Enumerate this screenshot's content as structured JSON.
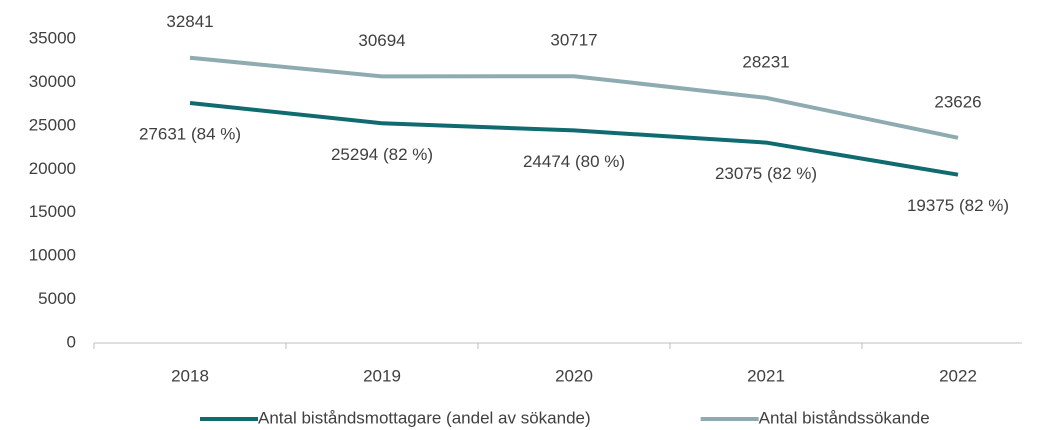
{
  "chart_data": {
    "type": "line",
    "categories": [
      "2018",
      "2019",
      "2020",
      "2021",
      "2022"
    ],
    "series": [
      {
        "name": "Antal biståndsmottagare (andel av sökande)",
        "color": "#0f6b6f",
        "values": [
          27631,
          25294,
          24474,
          23075,
          19375
        ],
        "value_labels": [
          "27631 (84 %)",
          "25294 (82 %)",
          "24474 (80 %)",
          "23075 (82 %)",
          "19375 (82 %)"
        ],
        "label_position": "below"
      },
      {
        "name": "Antal biståndssökande",
        "color": "#8fabb2",
        "values": [
          32841,
          30694,
          30717,
          28231,
          23626
        ],
        "label_position": "above"
      }
    ],
    "ylim": [
      0,
      35000
    ],
    "yticks": [
      0,
      5000,
      10000,
      15000,
      20000,
      25000,
      30000,
      35000
    ],
    "grid": false,
    "legend": "bottom"
  }
}
